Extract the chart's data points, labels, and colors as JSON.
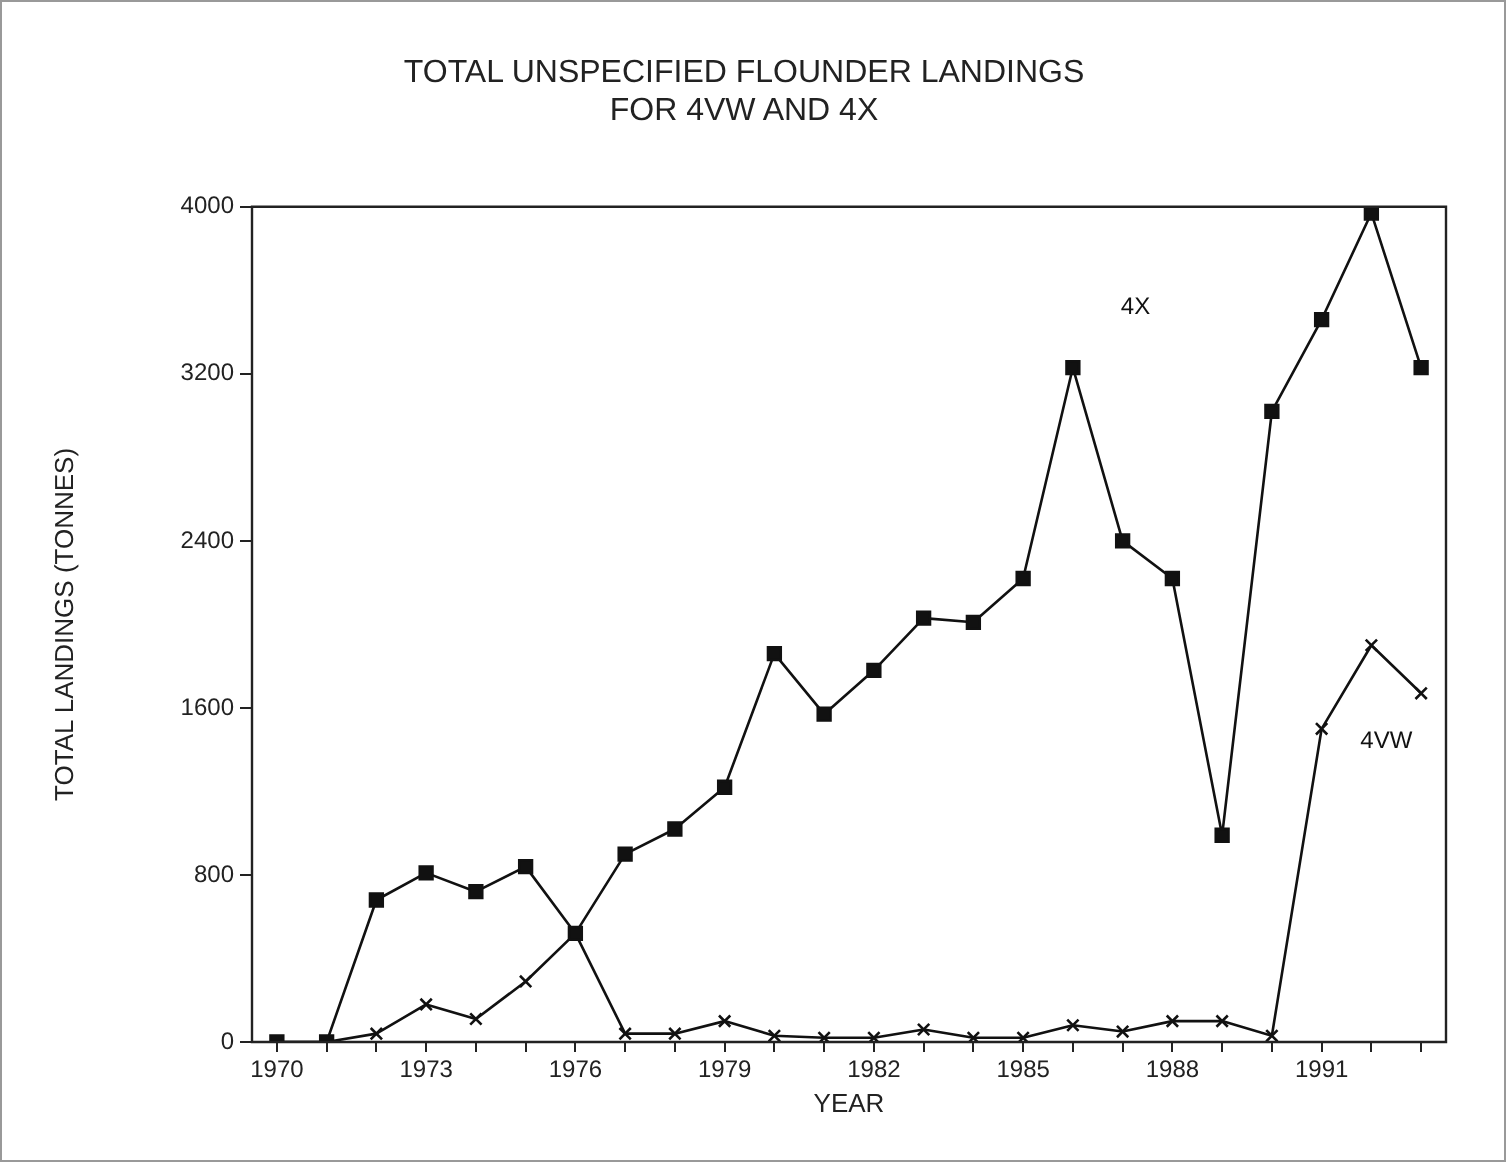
{
  "chart_data": {
    "type": "line",
    "title": "TOTAL UNSPECIFIED FLOUNDER LANDINGS\nFOR 4VW AND 4X",
    "xlabel": "YEAR",
    "ylabel": "TOTAL LANDINGS (TONNES)",
    "x": [
      1970,
      1971,
      1972,
      1973,
      1974,
      1975,
      1976,
      1977,
      1978,
      1979,
      1980,
      1981,
      1982,
      1983,
      1984,
      1985,
      1986,
      1987,
      1988,
      1989,
      1990,
      1991,
      1992,
      1993
    ],
    "series": [
      {
        "name": "4X",
        "color": "#111111",
        "marker": "square",
        "values": [
          0,
          0,
          680,
          810,
          720,
          840,
          520,
          900,
          1020,
          1220,
          1860,
          1570,
          1780,
          2030,
          2010,
          2220,
          3230,
          2400,
          2220,
          990,
          3020,
          3460,
          3970,
          3230
        ]
      },
      {
        "name": "4VW",
        "color": "#111111",
        "marker": "cross",
        "values": [
          0,
          0,
          40,
          180,
          110,
          290,
          520,
          40,
          40,
          100,
          30,
          20,
          20,
          60,
          20,
          20,
          80,
          50,
          100,
          100,
          30,
          1500,
          1900,
          1670
        ]
      }
    ],
    "xlim": [
      1969.5,
      1993.5
    ],
    "xticks": [
      1970,
      {
        "value": 1971,
        "label": null
      },
      {
        "value": 1972,
        "label": null
      },
      1973,
      {
        "value": 1974,
        "label": null
      },
      {
        "value": 1975,
        "label": null
      },
      1976,
      {
        "value": 1977,
        "label": null
      },
      {
        "value": 1978,
        "label": null
      },
      1979,
      {
        "value": 1980,
        "label": null
      },
      {
        "value": 1981,
        "label": null
      },
      1982,
      {
        "value": 1983,
        "label": null
      },
      {
        "value": 1984,
        "label": null
      },
      1985,
      {
        "value": 1986,
        "label": null
      },
      {
        "value": 1987,
        "label": null
      },
      1988,
      {
        "value": 1989,
        "label": null
      },
      {
        "value": 1990,
        "label": null
      },
      1991,
      {
        "value": 1992,
        "label": null
      },
      {
        "value": 1993,
        "label": null
      }
    ],
    "ylim": [
      0,
      4000
    ],
    "yticks": [
      0,
      800,
      1600,
      2400,
      3200,
      4000
    ],
    "grid": false,
    "legend": false,
    "line_style": "solid"
  }
}
